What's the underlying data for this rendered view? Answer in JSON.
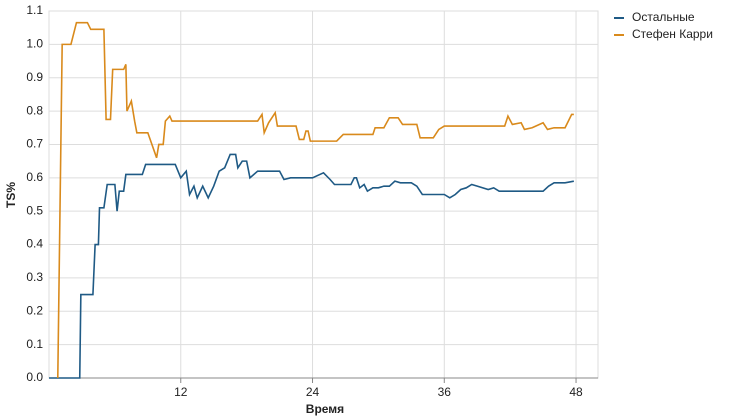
{
  "chart_data": {
    "type": "line",
    "x_label": "Время",
    "y_label": "TS%",
    "xlim": [
      0,
      50
    ],
    "xticks": [
      12,
      24,
      36,
      48
    ],
    "ylim": [
      0,
      1.1
    ],
    "yticks": [
      {
        "value": 0,
        "label": "0.0"
      },
      0.1,
      0.2,
      0.3,
      0.4,
      0.5,
      0.6,
      0.7,
      0.8,
      0.9,
      {
        "value": 1,
        "label": "1.0"
      },
      1.1
    ],
    "grid": true,
    "legend": "right",
    "series": [
      {
        "name": "Остальные",
        "color": "#1f5a85",
        "x": [
          0,
          2.8,
          2.9,
          4,
          4.2,
          4.5,
          4.6,
          5.0,
          5.3,
          6,
          6.2,
          6.4,
          6.8,
          7,
          8.5,
          8.8,
          11.5,
          12,
          12.5,
          12.8,
          13.2,
          13.5,
          14,
          14.5,
          15,
          15.5,
          16,
          16.5,
          17,
          17.2,
          17.6,
          18,
          18.3,
          19,
          21,
          21.4,
          22,
          24,
          25,
          25.6,
          26,
          27.5,
          27.8,
          28,
          28.3,
          28.7,
          29,
          29.5,
          30,
          30.5,
          31,
          31.5,
          32,
          33,
          33.5,
          34,
          36,
          36.5,
          37,
          37.5,
          38,
          38.5,
          39,
          40,
          40.5,
          41,
          45,
          45.5,
          46,
          47,
          47.8
        ],
        "values": [
          0,
          0,
          0.25,
          0.25,
          0.4,
          0.4,
          0.51,
          0.51,
          0.58,
          0.58,
          0.5,
          0.56,
          0.56,
          0.61,
          0.61,
          0.64,
          0.64,
          0.6,
          0.62,
          0.55,
          0.575,
          0.54,
          0.575,
          0.54,
          0.575,
          0.62,
          0.63,
          0.67,
          0.67,
          0.63,
          0.65,
          0.65,
          0.6,
          0.62,
          0.62,
          0.595,
          0.6,
          0.6,
          0.615,
          0.595,
          0.58,
          0.58,
          0.6,
          0.6,
          0.57,
          0.58,
          0.56,
          0.57,
          0.57,
          0.575,
          0.575,
          0.59,
          0.585,
          0.585,
          0.575,
          0.55,
          0.55,
          0.54,
          0.55,
          0.565,
          0.57,
          0.58,
          0.575,
          0.565,
          0.57,
          0.56,
          0.56,
          0.575,
          0.585,
          0.585,
          0.59
        ]
      },
      {
        "name": "Стефен Карри",
        "color": "#d98a1c",
        "x": [
          0.8,
          1.2,
          2,
          2.5,
          3.5,
          3.8,
          5,
          5.2,
          5.6,
          5.8,
          6.8,
          7,
          7.1,
          7.5,
          7.8,
          8,
          9,
          9.8,
          10,
          10.4,
          10.6,
          11,
          11.2,
          19,
          19.4,
          19.6,
          20,
          20.6,
          20.8,
          22.5,
          22.8,
          23.2,
          23.4,
          23.6,
          23.8,
          26.2,
          26.8,
          29.5,
          29.7,
          30.5,
          31,
          31.8,
          32.2,
          33.5,
          33.8,
          35,
          35.5,
          36,
          41.5,
          41.8,
          42.2,
          43,
          43.3,
          44,
          45,
          45.4,
          46,
          47,
          47.3,
          47.6,
          47.8
        ],
        "values": [
          0,
          1.0,
          1.0,
          1.065,
          1.065,
          1.045,
          1.045,
          0.775,
          0.775,
          0.925,
          0.925,
          0.94,
          0.8,
          0.83,
          0.77,
          0.735,
          0.735,
          0.66,
          0.7,
          0.7,
          0.77,
          0.785,
          0.77,
          0.77,
          0.79,
          0.735,
          0.765,
          0.795,
          0.755,
          0.755,
          0.715,
          0.715,
          0.74,
          0.74,
          0.71,
          0.71,
          0.73,
          0.73,
          0.75,
          0.75,
          0.78,
          0.78,
          0.76,
          0.76,
          0.72,
          0.72,
          0.745,
          0.755,
          0.755,
          0.785,
          0.76,
          0.765,
          0.745,
          0.75,
          0.765,
          0.745,
          0.75,
          0.75,
          0.77,
          0.79,
          0.79
        ]
      }
    ]
  }
}
